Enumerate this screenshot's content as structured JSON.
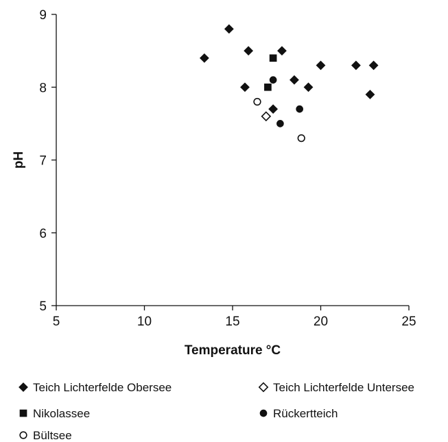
{
  "chart_data": {
    "type": "scatter",
    "xlabel": "Temperature °C",
    "ylabel": "pH",
    "xlim": [
      5,
      25
    ],
    "ylim": [
      5,
      9
    ],
    "xticks": [
      5,
      10,
      15,
      20,
      25
    ],
    "yticks": [
      5,
      6,
      7,
      8,
      9
    ],
    "xtick_labels": [
      "5",
      "10",
      "15",
      "20",
      "25"
    ],
    "ytick_labels": [
      "5",
      "6",
      "7",
      "8",
      "9"
    ],
    "grid": false,
    "legend_position": "bottom",
    "series": [
      {
        "name": "Teich Lichterfelde Obersee",
        "marker": "diamond-filled",
        "points": [
          {
            "x": 13.4,
            "y": 8.4
          },
          {
            "x": 14.8,
            "y": 8.8
          },
          {
            "x": 15.7,
            "y": 8.0
          },
          {
            "x": 15.9,
            "y": 8.5
          },
          {
            "x": 17.3,
            "y": 7.7
          },
          {
            "x": 17.8,
            "y": 8.5
          },
          {
            "x": 18.5,
            "y": 8.1
          },
          {
            "x": 19.3,
            "y": 8.0
          },
          {
            "x": 20.0,
            "y": 8.3
          },
          {
            "x": 22.0,
            "y": 8.3
          },
          {
            "x": 22.8,
            "y": 7.9
          },
          {
            "x": 23.0,
            "y": 8.3
          }
        ]
      },
      {
        "name": "Teich Lichterfelde Untersee",
        "marker": "diamond-open",
        "points": [
          {
            "x": 16.9,
            "y": 7.6
          }
        ]
      },
      {
        "name": "Nikolassee",
        "marker": "square-filled",
        "points": [
          {
            "x": 17.0,
            "y": 8.0
          },
          {
            "x": 17.3,
            "y": 8.4
          }
        ]
      },
      {
        "name": "Rückertteich",
        "marker": "circle-filled",
        "points": [
          {
            "x": 17.3,
            "y": 8.1
          },
          {
            "x": 17.7,
            "y": 7.5
          },
          {
            "x": 18.8,
            "y": 7.7
          }
        ]
      },
      {
        "name": "Bültsee",
        "marker": "circle-open",
        "points": [
          {
            "x": 16.4,
            "y": 7.8
          },
          {
            "x": 18.9,
            "y": 7.3
          }
        ]
      }
    ]
  },
  "colors": {
    "ink": "#111111",
    "background": "#ffffff"
  }
}
